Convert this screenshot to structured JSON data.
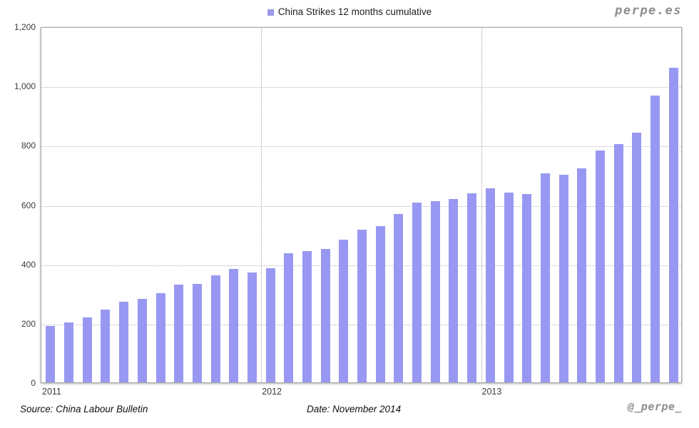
{
  "watermark": {
    "site": "perpe.es",
    "handle": "@_perpe_"
  },
  "legend": {
    "label": "China Strikes 12 months cumulative",
    "color": "#9898f2"
  },
  "footer": {
    "source": "Source: China Labour Bulletin",
    "date": "Date: November 2014"
  },
  "chart_data": {
    "type": "bar",
    "title": "China Strikes 12 months cumulative",
    "series_name": "China Strikes 12 months cumulative",
    "bar_color": "#9898f2",
    "ylim": [
      0,
      1200
    ],
    "y_ticks": [
      0,
      200,
      400,
      600,
      800,
      1000,
      1200
    ],
    "y_tick_labels": [
      "0",
      "200",
      "400",
      "600",
      "800",
      "1,000",
      "1,200"
    ],
    "year_labels": [
      {
        "label": "2011",
        "slot": 0
      },
      {
        "label": "2012",
        "slot": 12
      },
      {
        "label": "2013",
        "slot": 24
      }
    ],
    "bars_per_year": {
      "2011": 12,
      "2012": 12,
      "2013": 11
    },
    "values": [
      190,
      201,
      219,
      245,
      271,
      282,
      301,
      330,
      333,
      360,
      383,
      370,
      384,
      436,
      442,
      451,
      481,
      514,
      526,
      567,
      607,
      610,
      618,
      638,
      655,
      641,
      635,
      705,
      701,
      721,
      781,
      803,
      841,
      967,
      1061
    ],
    "grid": {
      "horizontal": "dotted at each 200",
      "vertical": "dotted at year starts"
    },
    "legend_position": "top-center"
  }
}
